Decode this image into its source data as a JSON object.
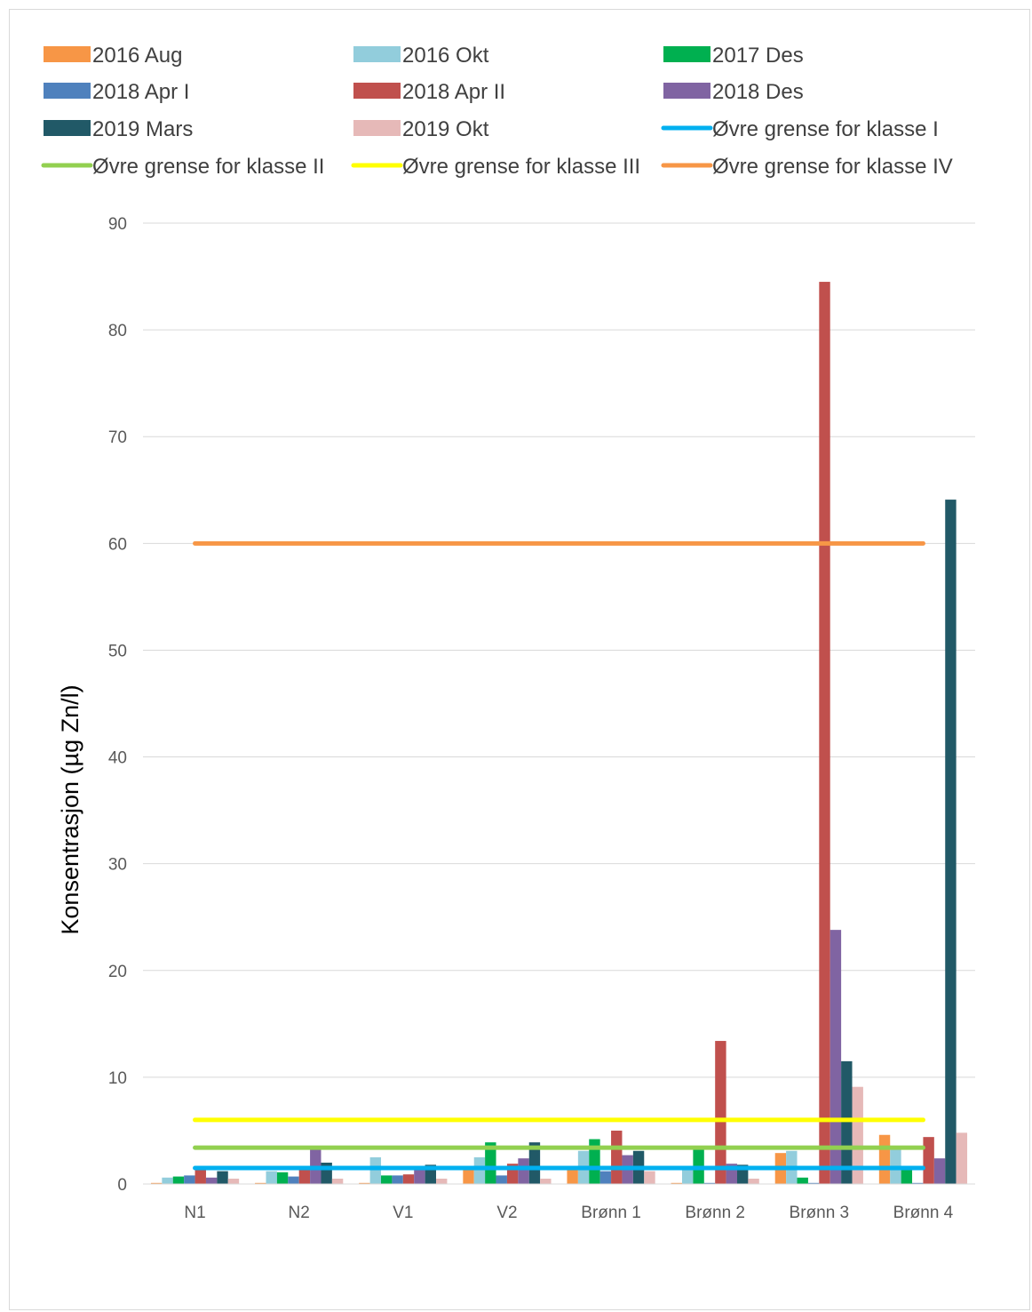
{
  "chart_data": {
    "type": "bar",
    "title": "",
    "xlabel": "",
    "ylabel": "Konsentrasjon (µg Zn/l)",
    "ylim": [
      0,
      90
    ],
    "yticks": [
      0,
      10,
      20,
      30,
      40,
      50,
      60,
      70,
      80,
      90
    ],
    "grid": true,
    "legend_position": "top",
    "categories": [
      "N1",
      "N2",
      "V1",
      "V2",
      "Brønn 1",
      "Brønn 2",
      "Brønn 3",
      "Brønn 4"
    ],
    "series": [
      {
        "name": "2016 Aug",
        "color": "#F79646",
        "values": [
          0.1,
          0.1,
          0.1,
          1.3,
          1.5,
          0.1,
          2.9,
          4.6
        ]
      },
      {
        "name": "2016 Okt",
        "color": "#92CDDC",
        "values": [
          0.6,
          1.2,
          2.5,
          2.5,
          3.1,
          1.7,
          3.1,
          3.3
        ]
      },
      {
        "name": "2017 Des",
        "color": "#00B050",
        "values": [
          0.7,
          1.1,
          0.8,
          3.9,
          4.2,
          3.4,
          0.6,
          1.3
        ]
      },
      {
        "name": "2018 Apr I",
        "color": "#4F81BD",
        "values": [
          0.8,
          0.7,
          0.8,
          0.8,
          1.2,
          0.1,
          0.1,
          0.1
        ]
      },
      {
        "name": "2018 Apr II",
        "color": "#C0504D",
        "values": [
          1.5,
          1.3,
          0.9,
          1.9,
          5.0,
          13.4,
          84.5,
          4.4
        ]
      },
      {
        "name": "2018 Des",
        "color": "#8064A2",
        "values": [
          0.6,
          3.3,
          1.4,
          2.4,
          2.7,
          1.9,
          23.8,
          2.4
        ]
      },
      {
        "name": "2019 Mars",
        "color": "#215967",
        "values": [
          1.2,
          2.0,
          1.8,
          3.9,
          3.1,
          1.8,
          11.5,
          64.1
        ]
      },
      {
        "name": "2019 Okt",
        "color": "#E6B9B8",
        "values": [
          0.5,
          0.5,
          0.5,
          0.5,
          1.2,
          0.5,
          9.1,
          4.8
        ]
      }
    ],
    "reference_lines": [
      {
        "name": "Øvre grense for klasse I",
        "color": "#00B0F0",
        "value": 1.5
      },
      {
        "name": "Øvre grense for klasse II",
        "color": "#92D050",
        "value": 3.4
      },
      {
        "name": "Øvre grense for klasse III",
        "color": "#FFFF00",
        "value": 6.0
      },
      {
        "name": "Øvre grense for klasse IV",
        "color": "#F79646",
        "value": 60.0
      }
    ]
  }
}
